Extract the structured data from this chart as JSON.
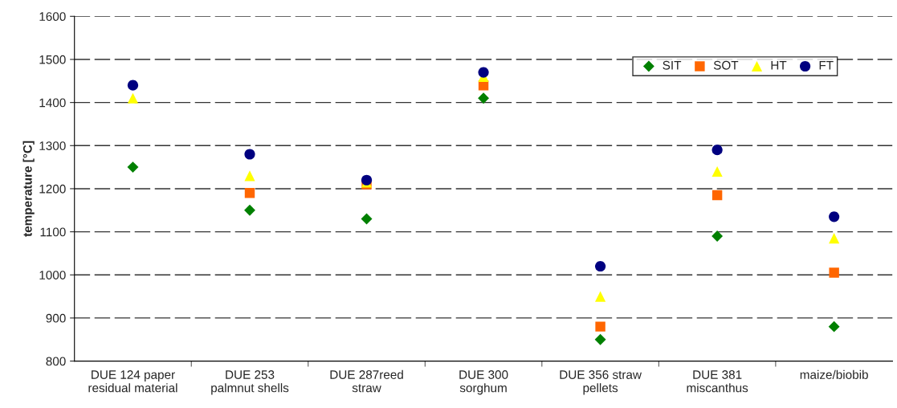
{
  "chart_data": {
    "type": "scatter",
    "ylabel": "temperature [°C]",
    "categories": [
      "DUE 124 paper\nresidual material",
      "DUE 253\npalmnut shells",
      "DUE 287reed\nstraw",
      "DUE 300\nsorghum",
      "DUE 356 straw\npellets",
      "DUE 381\nmiscanthus",
      "maize/biobib"
    ],
    "series": [
      {
        "name": "SIT",
        "color": "#008000",
        "marker": "diamond",
        "values": [
          1250,
          1150,
          1130,
          1410,
          850,
          1090,
          880
        ]
      },
      {
        "name": "SOT",
        "color": "#ff6600",
        "marker": "square",
        "values": [
          null,
          1190,
          1210,
          1440,
          880,
          1185,
          1005
        ]
      },
      {
        "name": "HT",
        "color": "#ffff00",
        "marker": "triangle",
        "values": [
          1410,
          1230,
          1215,
          1460,
          950,
          1240,
          1085
        ]
      },
      {
        "name": "FT",
        "color": "#000080",
        "marker": "circle",
        "values": [
          1440,
          1280,
          1220,
          1470,
          1020,
          1290,
          1135
        ]
      }
    ],
    "ylim": [
      800,
      1600
    ],
    "yticks": [
      800,
      900,
      1000,
      1100,
      1200,
      1300,
      1400,
      1500,
      1600
    ],
    "grid": "y",
    "legend": "top right"
  }
}
